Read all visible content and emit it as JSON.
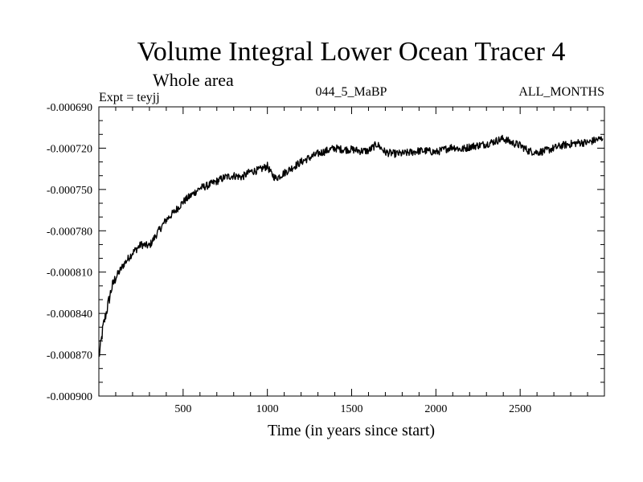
{
  "chart_data": {
    "type": "line",
    "title": "Volume Integral Lower Ocean Tracer 4",
    "subtitle": "Whole area",
    "experiment": "Expt = teyjj",
    "run_label": "044_5_MaBP",
    "period_label": "ALL_MONTHS",
    "xlabel": "Time (in years since start)",
    "ylabel": "",
    "xlim": [
      0,
      3000
    ],
    "ylim": [
      -0.0009,
      -0.00069
    ],
    "x_ticks": [
      500,
      1000,
      1500,
      2000,
      2500
    ],
    "x_tick_labels": [
      "500",
      "1000",
      "1500",
      "2000",
      "2500"
    ],
    "y_ticks": [
      -0.0009,
      -0.00087,
      -0.00084,
      -0.00081,
      -0.00078,
      -0.00075,
      -0.00072,
      -0.00069
    ],
    "y_tick_labels": [
      "-0.000900",
      "-0.000870",
      "-0.000840",
      "-0.000810",
      "-0.000780",
      "-0.000750",
      "-0.000720",
      "-0.000690"
    ],
    "grid": false,
    "series": [
      {
        "name": "Tracer 4",
        "color": "#000000",
        "x": [
          0,
          10,
          25,
          50,
          75,
          100,
          150,
          200,
          250,
          300,
          350,
          400,
          450,
          500,
          550,
          600,
          650,
          700,
          750,
          800,
          850,
          900,
          950,
          1000,
          1020,
          1050,
          1100,
          1150,
          1200,
          1250,
          1300,
          1350,
          1400,
          1450,
          1500,
          1550,
          1600,
          1650,
          1700,
          1750,
          1800,
          1850,
          1900,
          1950,
          2000,
          2050,
          2100,
          2150,
          2200,
          2250,
          2300,
          2350,
          2400,
          2450,
          2500,
          2550,
          2600,
          2650,
          2700,
          2750,
          2800,
          2850,
          2900,
          2950,
          2990
        ],
        "values": [
          -0.000872,
          -0.000864,
          -0.00085,
          -0.000836,
          -0.000822,
          -0.000814,
          -0.000804,
          -0.000796,
          -0.00079,
          -0.000791,
          -0.000781,
          -0.000772,
          -0.000766,
          -0.000759,
          -0.000754,
          -0.000749,
          -0.000747,
          -0.000744,
          -0.000741,
          -0.00074,
          -0.000741,
          -0.000737,
          -0.000736,
          -0.000733,
          -0.000738,
          -0.000742,
          -0.000738,
          -0.000734,
          -0.00073,
          -0.000727,
          -0.000724,
          -0.000722,
          -0.00072,
          -0.000721,
          -0.000721,
          -0.000722,
          -0.000722,
          -0.000717,
          -0.000723,
          -0.000724,
          -0.000724,
          -0.000723,
          -0.000722,
          -0.000722,
          -0.000723,
          -0.000721,
          -0.000719,
          -0.000721,
          -0.000719,
          -0.000718,
          -0.000717,
          -0.000715,
          -0.000713,
          -0.000716,
          -0.000718,
          -0.000722,
          -0.000723,
          -0.000722,
          -0.00072,
          -0.000718,
          -0.000717,
          -0.000716,
          -0.000716,
          -0.000714,
          -0.000713
        ]
      }
    ]
  }
}
